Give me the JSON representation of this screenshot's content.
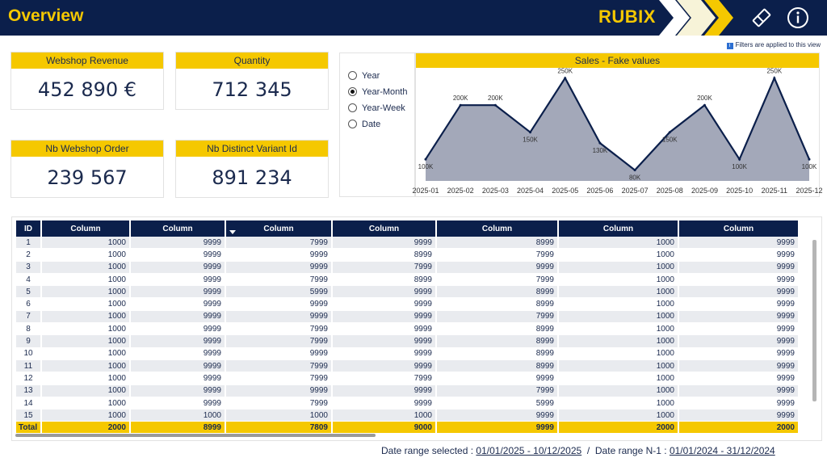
{
  "header": {
    "title": "Overview",
    "brand": "RUBIX",
    "icons": [
      "eraser-icon",
      "info-icon"
    ],
    "colors": {
      "navy": "#0b1f4b",
      "yellow": "#f5c800"
    }
  },
  "filter_note": "Filters are applied to this view",
  "kpis": {
    "revenue": {
      "label": "Webshop Revenue",
      "value": "452 890 €"
    },
    "quantity": {
      "label": "Quantity",
      "value": "712 345"
    },
    "orders": {
      "label": "Nb Webshop Order",
      "value": "239 567"
    },
    "variants": {
      "label": "Nb Distinct Variant Id",
      "value": "891 234"
    }
  },
  "granularity": {
    "options": [
      "Year",
      "Year-Month",
      "Year-Week",
      "Date"
    ],
    "selected": "Year-Month"
  },
  "chart_data": {
    "type": "area",
    "title": "Sales - Fake values",
    "categories": [
      "2025-01",
      "2025-02",
      "2025-03",
      "2025-04",
      "2025-05",
      "2025-06",
      "2025-07",
      "2025-08",
      "2025-09",
      "2025-10",
      "2025-11",
      "2025-12"
    ],
    "values": [
      100000,
      200000,
      200000,
      150000,
      250000,
      130000,
      80000,
      150000,
      200000,
      100000,
      250000,
      100000
    ],
    "data_labels": [
      "100K",
      "200K",
      "200K",
      "150K",
      "250K",
      "130K",
      "80K",
      "150K",
      "200K",
      "100K",
      "250K",
      "100K"
    ],
    "xlabel": "",
    "ylabel": "",
    "ylim": [
      60000,
      260000
    ],
    "colors": {
      "fill": "#a3a8b9",
      "line": "#0b1f4b"
    }
  },
  "table": {
    "headers": [
      "ID",
      "Column",
      "Column",
      "Column",
      "Column",
      "Column",
      "Column",
      "Column"
    ],
    "sorted_column": 3,
    "rows": [
      [
        "1",
        "1000",
        "9999",
        "7999",
        "9999",
        "8999",
        "1000",
        "9999"
      ],
      [
        "2",
        "1000",
        "9999",
        "9999",
        "8999",
        "7999",
        "1000",
        "9999"
      ],
      [
        "3",
        "1000",
        "9999",
        "9999",
        "7999",
        "9999",
        "1000",
        "9999"
      ],
      [
        "4",
        "1000",
        "9999",
        "7999",
        "8999",
        "7999",
        "1000",
        "9999"
      ],
      [
        "5",
        "1000",
        "9999",
        "5999",
        "9999",
        "8999",
        "1000",
        "9999"
      ],
      [
        "6",
        "1000",
        "9999",
        "9999",
        "9999",
        "8999",
        "1000",
        "9999"
      ],
      [
        "7",
        "1000",
        "9999",
        "9999",
        "9999",
        "7999",
        "1000",
        "9999"
      ],
      [
        "8",
        "1000",
        "9999",
        "7999",
        "9999",
        "8999",
        "1000",
        "9999"
      ],
      [
        "9",
        "1000",
        "9999",
        "7999",
        "9999",
        "8999",
        "1000",
        "9999"
      ],
      [
        "10",
        "1000",
        "9999",
        "9999",
        "9999",
        "8999",
        "1000",
        "9999"
      ],
      [
        "11",
        "1000",
        "9999",
        "7999",
        "9999",
        "8999",
        "1000",
        "9999"
      ],
      [
        "12",
        "1000",
        "9999",
        "7999",
        "7999",
        "9999",
        "1000",
        "9999"
      ],
      [
        "13",
        "1000",
        "9999",
        "9999",
        "9999",
        "7999",
        "1000",
        "9999"
      ],
      [
        "14",
        "1000",
        "9999",
        "7999",
        "9999",
        "5999",
        "1000",
        "9999"
      ],
      [
        "15",
        "1000",
        "1000",
        "1000",
        "1000",
        "9999",
        "1000",
        "9999"
      ]
    ],
    "total": [
      "Total",
      "2000",
      "8999",
      "7809",
      "9000",
      "9999",
      "2000",
      "2000"
    ]
  },
  "footer": {
    "selected_label": "Date range selected :",
    "selected_value": "01/01/2025 - 10/12/2025",
    "separator": "/",
    "n1_label": "Date range N-1 :",
    "n1_value": "01/01/2024 - 31/12/2024"
  }
}
